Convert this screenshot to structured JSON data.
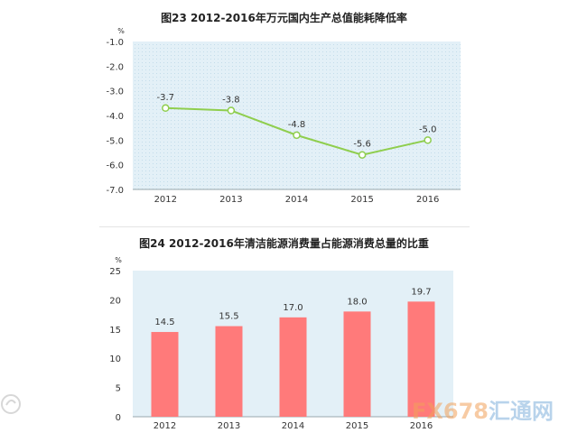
{
  "watermark": {
    "text_a": "FX678",
    "text_b": "汇通网"
  },
  "chart_data": [
    {
      "type": "line",
      "title": "图23   2012-2016年万元国内生产总值能耗降低率",
      "unit": "%",
      "categories": [
        "2012",
        "2013",
        "2014",
        "2015",
        "2016"
      ],
      "series": [
        {
          "values": [
            -3.7,
            -3.8,
            -4.8,
            -5.6,
            -5.0
          ]
        }
      ],
      "data_labels": [
        "-3.7",
        "-3.8",
        "-4.8",
        "-5.6",
        "-5.0"
      ],
      "ylim": [
        -7.0,
        -1.0
      ],
      "yticks": [
        "-1.0",
        "-2.0",
        "-3.0",
        "-4.0",
        "-5.0",
        "-6.0",
        "-7.0"
      ],
      "grid": true,
      "colors": {
        "line": "#8fce4e",
        "plot_bg": "#e3f0f7"
      }
    },
    {
      "type": "bar",
      "title": "图24   2012-2016年清洁能源消费量占能源消费总量的比重",
      "unit": "%",
      "categories": [
        "2012",
        "2013",
        "2014",
        "2015",
        "2016"
      ],
      "series": [
        {
          "values": [
            14.5,
            15.5,
            17.0,
            18.0,
            19.7
          ]
        }
      ],
      "data_labels": [
        "14.5",
        "15.5",
        "17.0",
        "18.0",
        "19.7"
      ],
      "ylim": [
        0,
        25
      ],
      "yticks": [
        "0",
        "5",
        "10",
        "15",
        "20",
        "25"
      ],
      "grid": false,
      "colors": {
        "bar": "#ff7a7a",
        "plot_bg": "#e3f0f7"
      }
    }
  ]
}
